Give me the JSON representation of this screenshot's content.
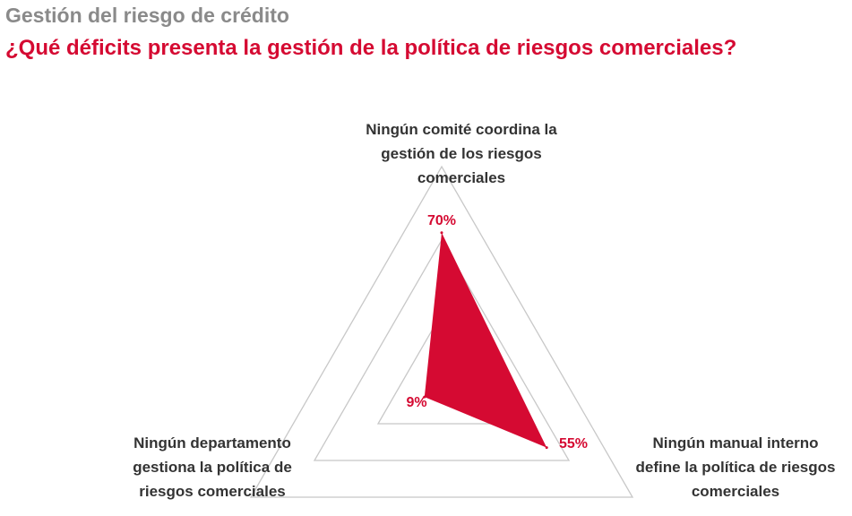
{
  "header": {
    "supertitle": "Gestión del riesgo de crédito",
    "title": "¿Qué déficits presenta la gestión de la política de riesgos comerciales?"
  },
  "colors": {
    "accent": "#d50a32",
    "grid": "#c8c8c8",
    "label_text": "#333333",
    "supertitle": "#8a8a8a"
  },
  "chart_data": {
    "type": "radar",
    "categories": [
      "Ningún comité coordina la gestión de los riesgos comerciales",
      "Ningún manual interno define la política de riesgos comerciales",
      "Ningún departamento gestiona la política de riesgos comerciales"
    ],
    "category_lines": [
      [
        "Ningún comité coordina la",
        "gestión de los riesgos",
        "comerciales"
      ],
      [
        "Ningún manual interno",
        "define la política de riesgos",
        "comerciales"
      ],
      [
        "Ningún departamento",
        "gestiona la política de",
        "riesgos comerciales"
      ]
    ],
    "values": [
      70,
      55,
      9
    ],
    "value_labels": [
      "70%",
      "55%",
      "9%"
    ],
    "unit": "%",
    "range": [
      0,
      100
    ],
    "grid_levels": 3
  }
}
